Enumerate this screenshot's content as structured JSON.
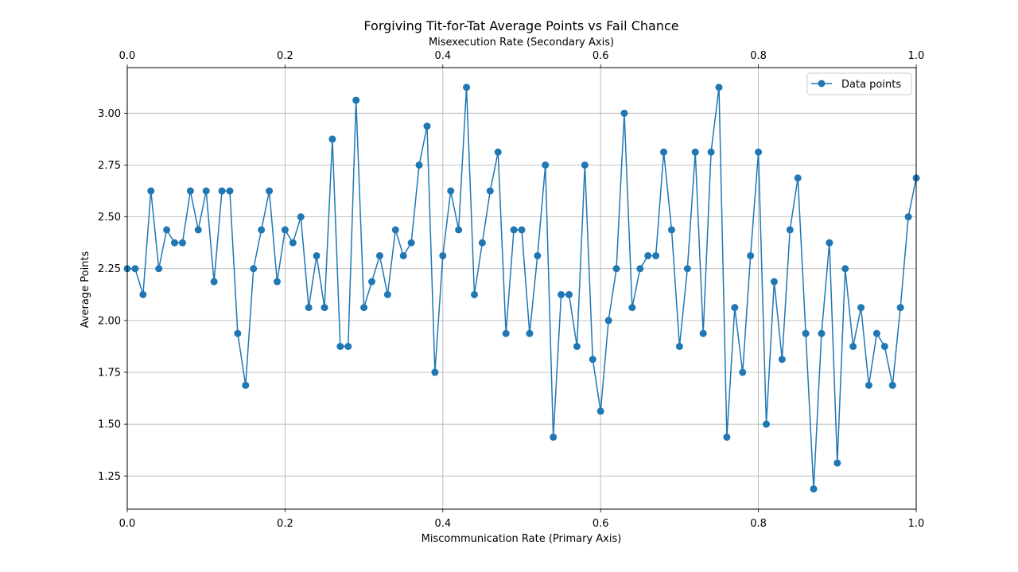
{
  "chart_data": {
    "type": "line",
    "title": "Forgiving Tit-for-Tat Average Points vs Fail Chance",
    "xlabel": "Miscommunication Rate (Primary Axis)",
    "xlabel_top": "Misexecution Rate (Secondary Axis)",
    "ylabel": "Average Points",
    "xlim": [
      0,
      1
    ],
    "ylim": [
      1.09,
      3.22
    ],
    "x_ticks": [
      0.0,
      0.2,
      0.4,
      0.6,
      0.8,
      1.0
    ],
    "x_tick_labels": [
      "0.0",
      "0.2",
      "0.4",
      "0.6",
      "0.8",
      "1.0"
    ],
    "y_ticks": [
      1.25,
      1.5,
      1.75,
      2.0,
      2.25,
      2.5,
      2.75,
      3.0
    ],
    "y_tick_labels": [
      "1.25",
      "1.50",
      "1.75",
      "2.00",
      "2.25",
      "2.50",
      "2.75",
      "3.00"
    ],
    "grid": true,
    "legend_position": "top-right",
    "series": [
      {
        "name": "Data points",
        "color": "#1f77b4",
        "marker": "circle",
        "x": [
          0.0,
          0.01,
          0.02,
          0.03,
          0.04,
          0.05,
          0.06,
          0.07,
          0.08,
          0.09,
          0.1,
          0.11,
          0.12,
          0.13,
          0.14,
          0.15,
          0.16,
          0.17,
          0.18,
          0.19,
          0.2,
          0.21,
          0.22,
          0.23,
          0.24,
          0.25,
          0.26,
          0.27,
          0.28,
          0.29,
          0.3,
          0.31,
          0.32,
          0.33,
          0.34,
          0.35,
          0.36,
          0.37,
          0.38,
          0.39,
          0.4,
          0.41,
          0.42,
          0.43,
          0.44,
          0.45,
          0.46,
          0.47,
          0.48,
          0.49,
          0.5,
          0.51,
          0.52,
          0.53,
          0.54,
          0.55,
          0.56,
          0.57,
          0.58,
          0.59,
          0.6,
          0.61,
          0.62,
          0.63,
          0.64,
          0.65,
          0.66,
          0.67,
          0.68,
          0.69,
          0.7,
          0.71,
          0.72,
          0.73,
          0.74,
          0.75,
          0.76,
          0.77,
          0.78,
          0.79,
          0.8,
          0.81,
          0.82,
          0.83,
          0.84,
          0.85,
          0.86,
          0.87,
          0.88,
          0.89,
          0.9,
          0.91,
          0.92,
          0.93,
          0.94,
          0.95,
          0.96,
          0.97,
          0.98,
          0.99,
          1.0
        ],
        "y": [
          2.25,
          2.25,
          2.125,
          2.625,
          2.25,
          2.4375,
          2.375,
          2.375,
          2.625,
          2.4375,
          2.625,
          2.1875,
          2.625,
          2.625,
          1.9375,
          1.6875,
          2.25,
          2.4375,
          2.625,
          2.1875,
          2.4375,
          2.375,
          2.5,
          2.0625,
          2.3125,
          2.0625,
          2.875,
          1.875,
          1.875,
          3.0625,
          2.0625,
          2.1875,
          2.3125,
          2.125,
          2.4375,
          2.3125,
          2.375,
          2.75,
          2.9375,
          1.75,
          2.3125,
          2.625,
          2.4375,
          3.125,
          2.125,
          2.375,
          2.625,
          2.8125,
          1.9375,
          2.4375,
          2.4375,
          1.9375,
          2.3125,
          2.75,
          1.4375,
          2.125,
          2.125,
          1.875,
          2.75,
          1.8125,
          1.5625,
          2.0,
          2.25,
          3.0,
          2.0625,
          2.25,
          2.3125,
          2.3125,
          2.8125,
          2.4375,
          1.875,
          2.25,
          2.8125,
          1.9375,
          2.8125,
          3.125,
          1.4375,
          2.0625,
          1.75,
          2.3125,
          2.8125,
          1.5,
          2.1875,
          1.8125,
          2.4375,
          2.6875,
          1.9375,
          1.1875,
          1.9375,
          2.375,
          1.3125,
          2.25,
          1.875,
          2.0625,
          1.6875,
          1.9375,
          1.875,
          1.6875,
          2.0625,
          2.5,
          2.6875
        ]
      }
    ]
  }
}
